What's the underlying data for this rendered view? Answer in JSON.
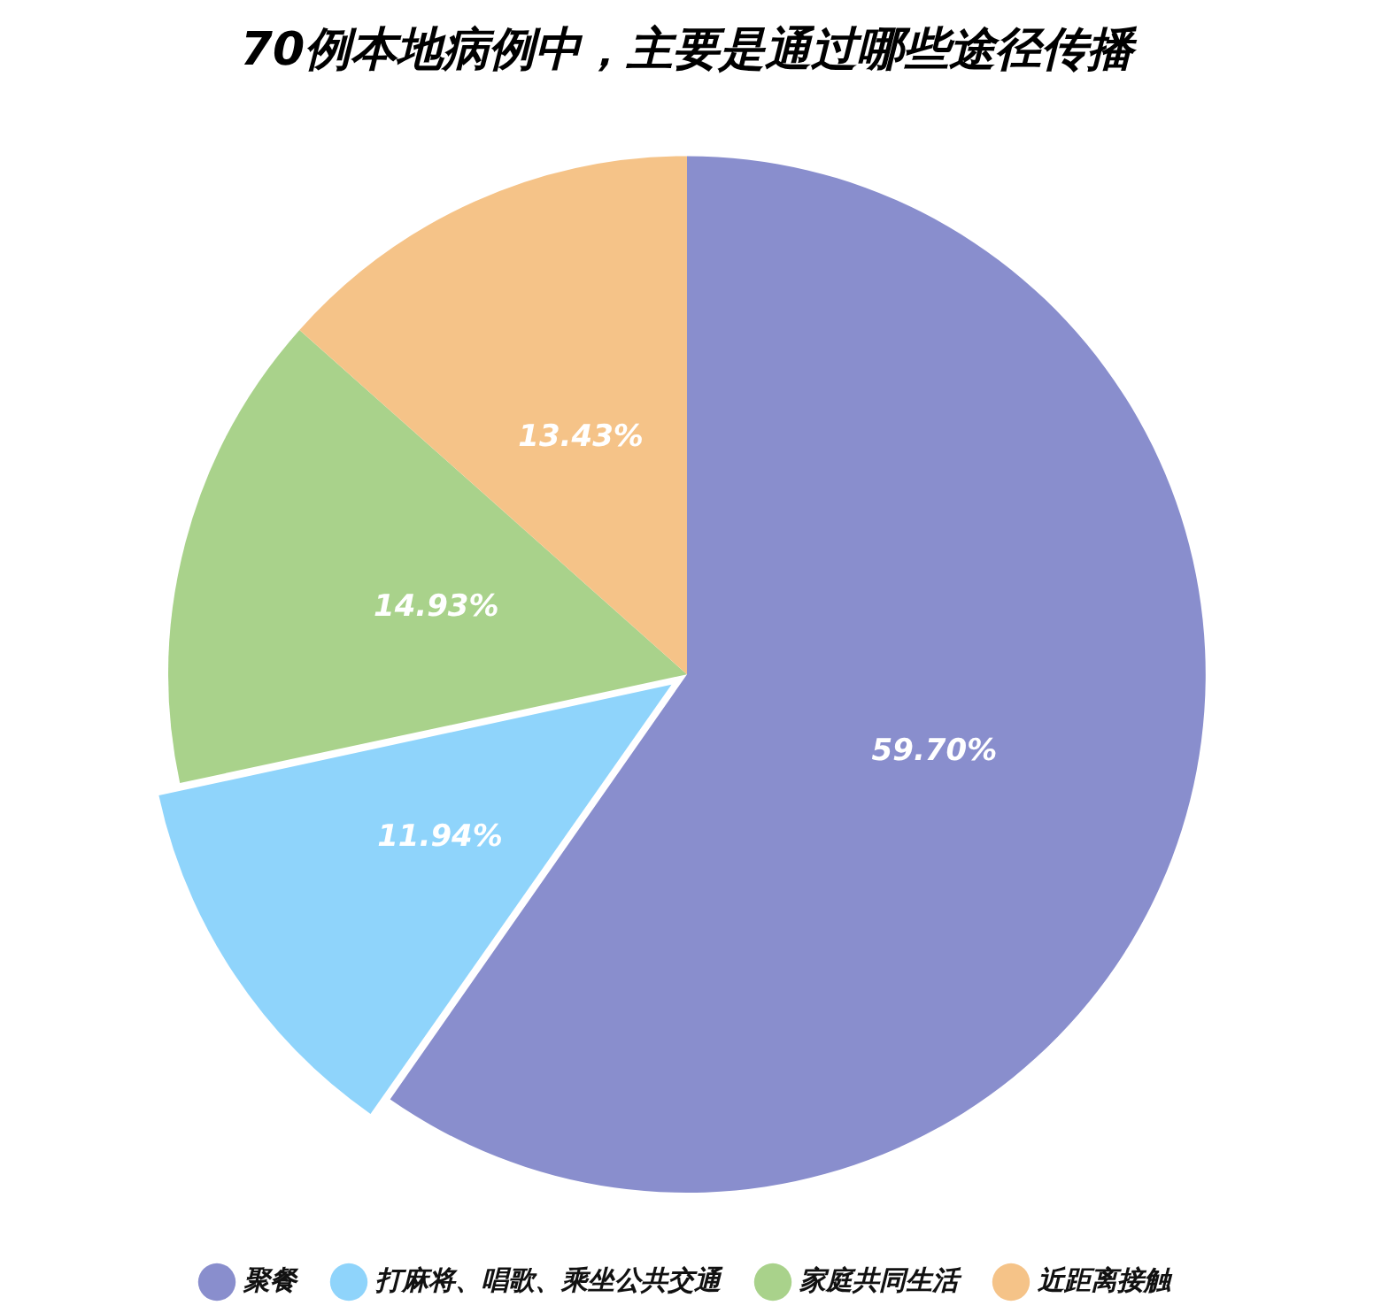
{
  "chart_data": {
    "type": "pie",
    "title": "70例本地病例中，主要是通过哪些途径传播",
    "categories": [
      "聚餐",
      "打麻将、唱歌、乘坐公共交通",
      "家庭共同生活",
      "近距离接触"
    ],
    "values": [
      59.7,
      11.94,
      14.93,
      13.43
    ],
    "colors": [
      "#898ecd",
      "#8fd4fb",
      "#a9d28b",
      "#f5c388"
    ],
    "value_labels": [
      "59.70%",
      "11.94%",
      "14.93%",
      "13.43%"
    ],
    "legend": "bottom"
  }
}
